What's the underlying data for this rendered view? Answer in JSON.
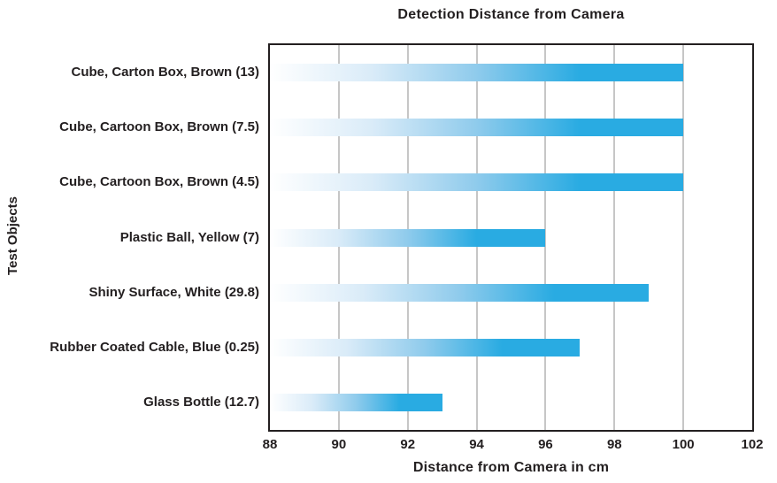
{
  "chart_data": {
    "type": "bar",
    "orientation": "horizontal",
    "title": "Detection Distance from Camera",
    "xlabel": "Distance from Camera in cm",
    "ylabel": "Test Objects",
    "categories": [
      "Cube, Carton Box, Brown (13)",
      "Cube, Cartoon Box, Brown (7.5)",
      "Cube, Cartoon Box, Brown (4.5)",
      "Plastic Ball, Yellow (7)",
      "Shiny Surface, White (29.8)",
      "Rubber Coated Cable, Blue (0.25)",
      "Glass Bottle (12.7)"
    ],
    "values": [
      100,
      100,
      100,
      96,
      99,
      97,
      93
    ],
    "xlim": [
      88,
      102
    ],
    "xticks": [
      88,
      90,
      92,
      94,
      96,
      98,
      100,
      102
    ],
    "grid": "vertical-major",
    "legend": "none",
    "bar_style": "gradient-left-white-to-cyan"
  },
  "colors": {
    "bar_solid": "#29ABE2",
    "bar_gradient_start": "#FFFFFF",
    "frame": "#231F20",
    "gridline": "#C6C6C6",
    "text": "#231F20",
    "background": "#FFFFFF"
  }
}
